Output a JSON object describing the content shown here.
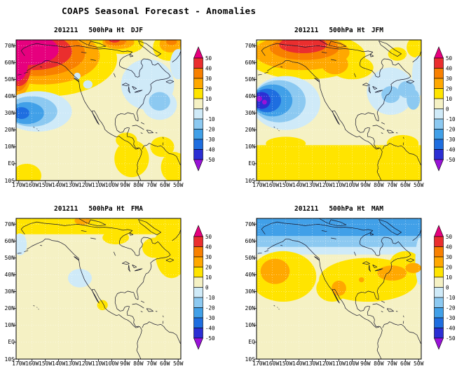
{
  "chart_data": {
    "type": "heatmap",
    "title": "COAPS Seasonal Forecast - Anomalies",
    "forecast_init": "201211",
    "variable": "500hPa Ht",
    "layout": {
      "rows": 2,
      "cols": 2,
      "grid": true,
      "legend_position": "right-of-each-panel"
    },
    "axes": {
      "lat_range": [
        -10,
        73.4
      ],
      "lon_range": [
        -172,
        -48
      ],
      "lat_ticks": [
        {
          "label": "70N",
          "value": 70
        },
        {
          "label": "60N",
          "value": 60
        },
        {
          "label": "50N",
          "value": 50
        },
        {
          "label": "40N",
          "value": 40
        },
        {
          "label": "30N",
          "value": 30
        },
        {
          "label": "20N",
          "value": 20
        },
        {
          "label": "10N",
          "value": 10
        },
        {
          "label": "EQ",
          "value": 0
        },
        {
          "label": "10S",
          "value": -10
        }
      ],
      "lon_ticks": [
        {
          "label": "170W",
          "value": -170
        },
        {
          "label": "160W",
          "value": -160
        },
        {
          "label": "150W",
          "value": -150
        },
        {
          "label": "140W",
          "value": -140
        },
        {
          "label": "130W",
          "value": -130
        },
        {
          "label": "120W",
          "value": -120
        },
        {
          "label": "110W",
          "value": -110
        },
        {
          "label": "100W",
          "value": -100
        },
        {
          "label": "90W",
          "value": -90
        },
        {
          "label": "80W",
          "value": -80
        },
        {
          "label": "70W",
          "value": -70
        },
        {
          "label": "60W",
          "value": -60
        },
        {
          "label": "50W",
          "value": -50
        }
      ]
    },
    "colorbar": {
      "labels": [
        "50",
        "40",
        "30",
        "20",
        "10",
        "0",
        "-10",
        "-20",
        "-30",
        "-40",
        "-50"
      ],
      "segments_top_to_bottom": [
        "p50",
        "p40",
        "p30",
        "p20",
        "p10",
        "z0",
        "m10",
        "m20",
        "m30",
        "m40",
        "m50",
        "m60"
      ],
      "scale": {
        "p50": "#e6007e",
        "p40": "#ea2e2e",
        "p30": "#f88000",
        "p20": "#ffa800",
        "p10": "#ffe400",
        "z0": "#f5f1c4",
        "m10": "#cfeaf8",
        "m20": "#8cc9f1",
        "m30": "#41a0e8",
        "m40": "#1e6ee0",
        "m50": "#2b2fd4",
        "m60": "#9912d8"
      }
    },
    "panels": [
      {
        "season": "DJF",
        "title_parts": {
          "date": "201211",
          "variable": "500hPa Ht",
          "season": "DJF"
        },
        "features": [
          {
            "shape": "ellipse",
            "lon": -148,
            "lat": 62,
            "rlon": 52,
            "rlat": 22,
            "band": "p10"
          },
          {
            "shape": "ellipse",
            "lon": -171,
            "lat": 50,
            "rlon": 10,
            "rlat": 14,
            "band": "p10"
          },
          {
            "shape": "ellipse",
            "lon": -92,
            "lat": 71,
            "rlon": 16,
            "rlat": 6,
            "band": "p10"
          },
          {
            "shape": "ellipse",
            "lon": -57,
            "lat": 69,
            "rlon": 12,
            "rlat": 8,
            "band": "p10"
          },
          {
            "shape": "ellipse",
            "lon": -152,
            "lat": 64,
            "rlon": 43,
            "rlat": 17,
            "band": "p20"
          },
          {
            "shape": "ellipse",
            "lon": -171,
            "lat": 53,
            "rlon": 10,
            "rlat": 13,
            "band": "p20"
          },
          {
            "shape": "ellipse",
            "lon": -95,
            "lat": 72,
            "rlon": 12,
            "rlat": 4,
            "band": "p20"
          },
          {
            "shape": "ellipse",
            "lon": -56,
            "lat": 71,
            "rlon": 8,
            "rlat": 5,
            "band": "p20"
          },
          {
            "shape": "ellipse",
            "lon": -156,
            "lat": 65.5,
            "rlon": 36,
            "rlat": 13.5,
            "band": "p30"
          },
          {
            "shape": "ellipse",
            "lon": -171,
            "lat": 55,
            "rlon": 9,
            "rlat": 12,
            "band": "p30"
          },
          {
            "shape": "ellipse",
            "lon": -97,
            "lat": 72.5,
            "rlon": 8,
            "rlat": 2.5,
            "band": "p30"
          },
          {
            "shape": "ellipse",
            "lon": -55,
            "lat": 72.3,
            "rlon": 4,
            "rlat": 2,
            "band": "p30"
          },
          {
            "shape": "ellipse",
            "lon": -159,
            "lat": 66.5,
            "rlon": 29,
            "rlat": 11,
            "band": "p40"
          },
          {
            "shape": "ellipse",
            "lon": -170,
            "lat": 57,
            "rlon": 9,
            "rlat": 11,
            "band": "p40"
          },
          {
            "shape": "ellipse",
            "lon": -98,
            "lat": 73.2,
            "rlon": 4,
            "rlat": 1.4,
            "band": "p40"
          },
          {
            "shape": "ellipse",
            "lon": -163,
            "lat": 67.5,
            "rlon": 23,
            "rlat": 9,
            "band": "p50"
          },
          {
            "shape": "ellipse",
            "lon": -171,
            "lat": 60,
            "rlon": 8,
            "rlat": 11,
            "band": "p50"
          },
          {
            "shape": "ellipse",
            "lon": -73,
            "lat": 47,
            "rlon": 20,
            "rlat": 15,
            "band": "m10"
          },
          {
            "shape": "ellipse",
            "lon": -64,
            "lat": 35,
            "rlon": 13,
            "rlat": 9,
            "band": "m10"
          },
          {
            "shape": "ellipse",
            "lon": -50,
            "lat": 59,
            "rlon": 6,
            "rlat": 9,
            "band": "m10"
          },
          {
            "shape": "ellipse",
            "lon": -64,
            "lat": 37,
            "rlon": 8,
            "rlat": 5.5,
            "band": "m20"
          },
          {
            "shape": "ellipse",
            "lon": -118,
            "lat": 47,
            "rlon": 3.5,
            "rlat": 2.5,
            "band": "m10"
          },
          {
            "shape": "ellipse",
            "lon": -126,
            "lat": 52,
            "rlon": 2.5,
            "rlat": 2,
            "band": "m10"
          },
          {
            "shape": "ellipse",
            "lon": -156,
            "lat": 31,
            "rlon": 26,
            "rlat": 12,
            "band": "m10"
          },
          {
            "shape": "ellipse",
            "lon": -160,
            "lat": 31,
            "rlon": 19,
            "rlat": 9,
            "band": "m20"
          },
          {
            "shape": "ellipse",
            "lon": -164,
            "lat": 30,
            "rlon": 13,
            "rlat": 6.5,
            "band": "m30"
          },
          {
            "shape": "ellipse",
            "lon": -168,
            "lat": 30,
            "rlon": 6,
            "rlat": 3.5,
            "band": "m40"
          },
          {
            "shape": "ellipse",
            "lon": -164,
            "lat": -7,
            "rlon": 11,
            "rlat": 7,
            "band": "p10"
          },
          {
            "shape": "ellipse",
            "lon": -85,
            "lat": 3,
            "rlon": 13,
            "rlat": 11,
            "band": "p10"
          },
          {
            "shape": "ellipse",
            "lon": -53,
            "lat": -2,
            "rlon": 10,
            "rlat": 9,
            "band": "p10"
          },
          {
            "shape": "ellipse",
            "lon": -89,
            "lat": 14,
            "rlon": 8,
            "rlat": 4.5,
            "band": "p10"
          },
          {
            "shape": "ellipse",
            "lon": -62,
            "lat": 10,
            "rlon": 9,
            "rlat": 6,
            "band": "p10"
          }
        ]
      },
      {
        "season": "JFM",
        "title_parts": {
          "date": "201211",
          "variable": "500hPa Ht",
          "season": "JFM"
        },
        "features": [
          {
            "shape": "ellipse",
            "lon": -135,
            "lat": 64,
            "rlon": 45,
            "rlat": 14,
            "band": "p10"
          },
          {
            "shape": "ellipse",
            "lon": -100,
            "lat": 57,
            "rlon": 16,
            "rlat": 7,
            "band": "p10"
          },
          {
            "shape": "ellipse",
            "lon": -66,
            "lat": 65,
            "rlon": 7,
            "rlat": 4,
            "band": "p10"
          },
          {
            "shape": "ellipse",
            "lon": -52,
            "lat": 69,
            "rlon": 7,
            "rlat": 6,
            "band": "p10"
          },
          {
            "shape": "ellipse",
            "lon": -138,
            "lat": 66,
            "rlon": 36,
            "rlat": 10.5,
            "band": "p20"
          },
          {
            "shape": "ellipse",
            "lon": -113,
            "lat": 59,
            "rlon": 10,
            "rlat": 6,
            "band": "p20"
          },
          {
            "shape": "ellipse",
            "lon": -136,
            "lat": 68.5,
            "rlon": 26,
            "rlat": 7,
            "band": "p30"
          },
          {
            "shape": "ellipse",
            "lon": -137,
            "lat": 70.5,
            "rlon": 18,
            "rlat": 5,
            "band": "p40"
          },
          {
            "shape": "rect",
            "lon0": -172,
            "lon1": -48,
            "lat0": -10,
            "lat1": 11,
            "band": "p10"
          },
          {
            "shape": "ellipse",
            "lon": -150,
            "lat": 12,
            "rlon": 15,
            "rlat": 4,
            "band": "p10"
          },
          {
            "shape": "ellipse",
            "lon": -62,
            "lat": 12,
            "rlon": 12,
            "rlat": 5,
            "band": "p10"
          },
          {
            "shape": "ellipse",
            "lon": -150,
            "lat": 36,
            "rlon": 26,
            "rlat": 16,
            "band": "m10"
          },
          {
            "shape": "ellipse",
            "lon": -155,
            "lat": 37,
            "rlon": 20,
            "rlat": 12.5,
            "band": "m20"
          },
          {
            "shape": "ellipse",
            "lon": -160,
            "lat": 37.5,
            "rlon": 15,
            "rlat": 9.5,
            "band": "m30"
          },
          {
            "shape": "ellipse",
            "lon": -164,
            "lat": 37.5,
            "rlon": 10.5,
            "rlat": 7,
            "band": "m40"
          },
          {
            "shape": "ellipse",
            "lon": -168,
            "lat": 37.5,
            "rlon": 6.5,
            "rlat": 5,
            "band": "m50"
          },
          {
            "shape": "ellipse",
            "lon": -170,
            "lat": 38.5,
            "rlon": 2.2,
            "rlat": 1.6,
            "band": "m60"
          },
          {
            "shape": "ellipse",
            "lon": -166,
            "lat": 36.5,
            "rlon": 1.8,
            "rlat": 1.4,
            "band": "m60"
          },
          {
            "shape": "ellipse",
            "lon": -71,
            "lat": 43,
            "rlon": 18,
            "rlat": 14,
            "band": "m10"
          },
          {
            "shape": "ellipse",
            "lon": -50,
            "lat": 52,
            "rlon": 5,
            "rlat": 12,
            "band": "m10"
          },
          {
            "shape": "ellipse",
            "lon": -71,
            "lat": 41,
            "rlon": 7,
            "rlat": 5,
            "band": "m20"
          },
          {
            "shape": "ellipse",
            "lon": -59,
            "lat": 44,
            "rlon": 6.5,
            "rlat": 5,
            "band": "m20"
          },
          {
            "shape": "ellipse",
            "lon": -54,
            "lat": 38,
            "rlon": 5,
            "rlat": 6,
            "band": "m20"
          }
        ]
      },
      {
        "season": "FMA",
        "title_parts": {
          "date": "201211",
          "variable": "500hPa Ht",
          "season": "FMA"
        },
        "features": [
          {
            "shape": "rect",
            "lon0": -172,
            "lon1": -48,
            "lat0": 64,
            "lat1": 73.4,
            "band": "p10"
          },
          {
            "shape": "ellipse",
            "lon": -97,
            "lat": 62,
            "rlon": 10,
            "rlat": 4,
            "band": "p10"
          },
          {
            "shape": "ellipse",
            "lon": -60,
            "lat": 60,
            "rlon": 8,
            "rlat": 5,
            "band": "p10"
          },
          {
            "shape": "ellipse",
            "lon": -122,
            "lat": 72,
            "rlon": 6,
            "rlat": 2.5,
            "band": "p20"
          },
          {
            "shape": "ellipse",
            "lon": -55,
            "lat": 52,
            "rlon": 12,
            "rlat": 14,
            "band": "p10"
          },
          {
            "shape": "ellipse",
            "lon": -68,
            "lat": 56,
            "rlon": 9,
            "rlat": 6,
            "band": "p10"
          },
          {
            "shape": "ellipse",
            "lon": -124,
            "lat": 38,
            "rlon": 9,
            "rlat": 5.5,
            "band": "m10"
          },
          {
            "shape": "ellipse",
            "lon": -169,
            "lat": 58,
            "rlon": 5,
            "rlat": 6.5,
            "band": "m10"
          },
          {
            "shape": "ellipse",
            "lon": -107,
            "lat": 22,
            "rlon": 4,
            "rlat": 3,
            "band": "p10"
          }
        ]
      },
      {
        "season": "MAM",
        "title_parts": {
          "date": "201211",
          "variable": "500hPa Ht",
          "season": "MAM"
        },
        "features": [
          {
            "shape": "rect",
            "lon0": -172,
            "lon1": -48,
            "lat0": 52,
            "lat1": 73.4,
            "band": "m10"
          },
          {
            "shape": "rect",
            "lon0": -172,
            "lon1": -48,
            "lat0": 56.5,
            "lat1": 73.4,
            "band": "m20"
          },
          {
            "shape": "rect",
            "lon0": -172,
            "lon1": -48,
            "lat0": 63,
            "lat1": 73.4,
            "band": "m30"
          },
          {
            "shape": "ellipse",
            "lon": -152,
            "lat": 39,
            "rlon": 25,
            "rlat": 15,
            "band": "p10"
          },
          {
            "shape": "ellipse",
            "lon": -88,
            "lat": 37,
            "rlon": 37,
            "rlat": 13,
            "band": "p10"
          },
          {
            "shape": "ellipse",
            "lon": -115,
            "lat": 32,
            "rlon": 12,
            "rlat": 8,
            "band": "p10"
          },
          {
            "shape": "ellipse",
            "lon": -60,
            "lat": 46,
            "rlon": 12,
            "rlat": 8,
            "band": "p10"
          },
          {
            "shape": "ellipse",
            "lon": -49,
            "lat": 48,
            "rlon": 3.5,
            "rlat": 14,
            "band": "m10"
          },
          {
            "shape": "ellipse",
            "lon": -158,
            "lat": 42,
            "rlon": 11,
            "rlat": 7.5,
            "band": "p20"
          },
          {
            "shape": "ellipse",
            "lon": -110,
            "lat": 32,
            "rlon": 5.5,
            "rlat": 4.5,
            "band": "p20"
          },
          {
            "shape": "ellipse",
            "lon": -70,
            "lat": 41,
            "rlon": 11,
            "rlat": 4.5,
            "band": "p20"
          },
          {
            "shape": "ellipse",
            "lon": -54,
            "lat": 44,
            "rlon": 6,
            "rlat": 3,
            "band": "p20"
          },
          {
            "shape": "ellipse",
            "lon": -93,
            "lat": 37,
            "rlon": 2,
            "rlat": 1.5,
            "band": "p20"
          }
        ]
      }
    ]
  }
}
